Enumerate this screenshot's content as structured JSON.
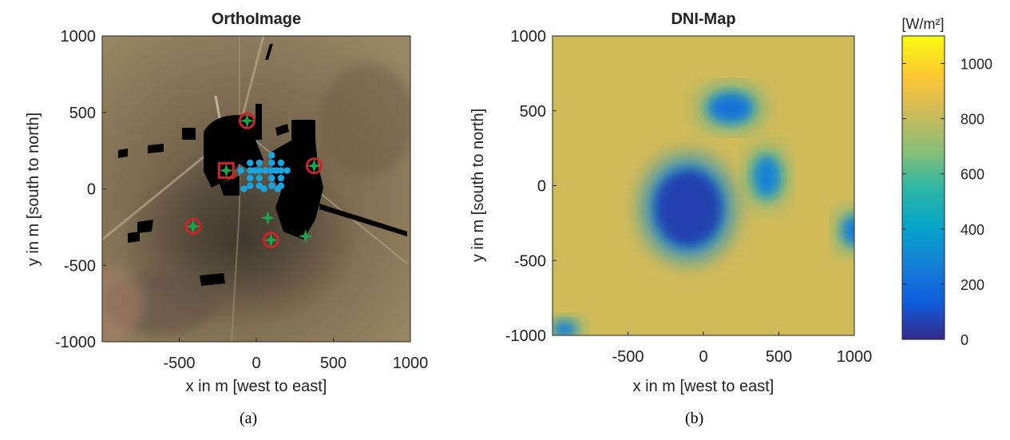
{
  "chart_data": [
    {
      "type": "scatter",
      "title": "OrthoImage",
      "caption": "(a)",
      "xlabel": "x in m [west to east]",
      "ylabel": "y in m [south to north]",
      "xlim": [
        -1000,
        1000
      ],
      "ylim": [
        -1000,
        1000
      ],
      "xticks": [
        -500,
        0,
        500,
        1000
      ],
      "yticks": [
        1000,
        500,
        0,
        -500,
        -1000
      ],
      "grid": false,
      "background": "aerial photograph (desert terrain) with black overlays for elevated objects",
      "series": [
        {
          "marker": "star",
          "color": "#1ea34a",
          "points": [
            [
              -60,
              445
            ],
            [
              375,
              150
            ],
            [
              -195,
              120
            ],
            [
              -410,
              -245
            ],
            [
              75,
              -190
            ],
            [
              95,
              -335
            ],
            [
              320,
              -310
            ]
          ]
        },
        {
          "marker": "circle-outline",
          "color": "#d0202a",
          "points": [
            [
              -60,
              445
            ],
            [
              375,
              150
            ],
            [
              -410,
              -245
            ],
            [
              95,
              -335
            ]
          ]
        },
        {
          "marker": "square-outline",
          "color": "#d0202a",
          "points": [
            [
              -195,
              120
            ]
          ]
        },
        {
          "marker": "dot",
          "color": "#1ba3e0",
          "points": [
            [
              -40,
              170
            ],
            [
              -40,
              120
            ],
            [
              -40,
              70
            ],
            [
              -40,
              20
            ],
            [
              20,
              170
            ],
            [
              20,
              120
            ],
            [
              20,
              70
            ],
            [
              20,
              20
            ],
            [
              100,
              220
            ],
            [
              100,
              170
            ],
            [
              100,
              120
            ],
            [
              100,
              70
            ],
            [
              100,
              20
            ],
            [
              160,
              170
            ],
            [
              160,
              120
            ],
            [
              160,
              70
            ],
            [
              160,
              20
            ],
            [
              -100,
              120
            ],
            [
              -80,
              0
            ],
            [
              50,
              0
            ],
            [
              140,
              0
            ],
            [
              200,
              120
            ],
            [
              -10,
              120
            ],
            [
              60,
              120
            ],
            [
              130,
              120
            ]
          ]
        }
      ]
    },
    {
      "type": "heatmap",
      "title": "DNI-Map",
      "caption": "(b)",
      "xlabel": "x in m [west to east]",
      "ylabel": "y in m [south to north]",
      "xlim": [
        -1000,
        1000
      ],
      "ylim": [
        -1000,
        1000
      ],
      "xticks": [
        -500,
        0,
        500,
        1000
      ],
      "yticks": [
        1000,
        500,
        0,
        -500,
        -1000
      ],
      "colorbar": {
        "label": "[W/m²]",
        "range": [
          0,
          1100
        ],
        "ticks": [
          0,
          200,
          400,
          600,
          800,
          1000
        ],
        "colormap": "parula"
      },
      "clear_sky_value": 820,
      "shadow_regions": [
        {
          "name": "main",
          "cx": -100,
          "cy": -150,
          "rx": 260,
          "ry": 300,
          "value": 60
        },
        {
          "name": "north",
          "cx": 180,
          "cy": 520,
          "rx": 170,
          "ry": 110,
          "value": 220
        },
        {
          "name": "east",
          "cx": 420,
          "cy": 60,
          "rx": 100,
          "ry": 160,
          "value": 280
        },
        {
          "name": "far-east",
          "cx": 1000,
          "cy": -300,
          "rx": 90,
          "ry": 110,
          "value": 240
        },
        {
          "name": "south-west-corner",
          "cx": -920,
          "cy": -960,
          "rx": 90,
          "ry": 60,
          "value": 250
        }
      ]
    }
  ]
}
